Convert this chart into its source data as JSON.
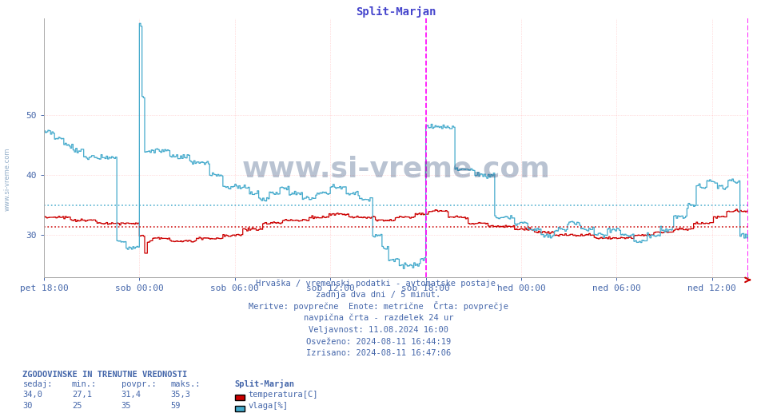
{
  "title": "Split-Marjan",
  "title_color": "#4444cc",
  "bg_color": "#ffffff",
  "plot_bg_color": "#ffffff",
  "grid_color": "#ffb0b0",
  "grid_color2": "#d0d0ff",
  "xlabel_ticks": [
    "pet 18:00",
    "sob 00:00",
    "sob 06:00",
    "sob 12:00",
    "sob 18:00",
    "ned 00:00",
    "ned 06:00",
    "ned 12:00"
  ],
  "yticks": [
    30,
    40,
    50
  ],
  "ylim_min": 23,
  "ylim_max": 66,
  "temp_color": "#cc0000",
  "vlaga_color": "#44aacc",
  "temp_avg": 31.4,
  "vlaga_avg": 35.0,
  "temp_avg_color": "#cc0000",
  "vlaga_avg_color": "#44aacc",
  "vline_color": "#ff00ff",
  "text_color": "#4466aa",
  "subtitle_lines": [
    "Hrvaška / vremenski podatki - avtomatske postaje.",
    "zadnja dva dni / 5 minut.",
    "Meritve: povprečne  Enote: metrične  Črta: povprečje",
    "navpična črta - razdelek 24 ur",
    "Veljavnost: 11.08.2024 16:00",
    "Osveženo: 2024-08-11 16:44:19",
    "Izrisano: 2024-08-11 16:47:06"
  ],
  "legend_title": "Split-Marjan",
  "legend_temp_label": "temperatura[C]",
  "legend_vlaga_label": "vlaga[%]",
  "table_header": "ZGODOVINSKE IN TRENUTNE VREDNOSTI",
  "table_cols": [
    "sedaj:",
    "min.:",
    "povpr.:",
    "maks.:"
  ],
  "temp_row": [
    "34,0",
    "27,1",
    "31,4",
    "35,3"
  ],
  "vlaga_row": [
    "30",
    "25",
    "35",
    "59"
  ],
  "watermark": "www.si-vreme.com",
  "watermark_color": "#1a3a6a",
  "watermark_alpha": 0.3
}
